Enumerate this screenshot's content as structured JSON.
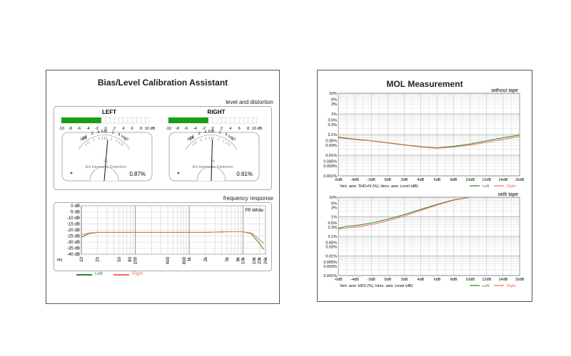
{
  "bias": {
    "title": "Bias/Level Calibration Assistant",
    "level_section": "level and distortion",
    "left": {
      "label": "LEFT",
      "level_db": -1,
      "distortion_value": "0.87%",
      "needle_percent": 1.05
    },
    "right": {
      "label": "RIGHT",
      "level_db": -1,
      "distortion_value": "0.61%",
      "needle_percent": 0.85
    },
    "level_scale": [
      "-10",
      "-8",
      "-6",
      "-4",
      "-2",
      "0",
      "2",
      "4",
      "6",
      "8",
      "10 dB"
    ],
    "dial_ticks": [
      ".06",
      ".08",
      "1",
      ".2",
      ".4",
      ".6",
      ".8",
      "1",
      "2",
      "4",
      "6",
      "8",
      "10"
    ],
    "dial_unit": "%",
    "dial_caption": "3rd Harmonic Distortion",
    "freq_section": "frequency response",
    "freq_mode": "FR White",
    "db_labels": [
      "0 dB",
      "-5 dB",
      "-10 dB",
      "-15 dB",
      "-20 dB",
      "-25 dB",
      "-30 dB",
      "-35 dB",
      "-40 dB"
    ],
    "hz_labels": [
      "Hz",
      "10",
      "20",
      "50",
      "80",
      "100",
      "400",
      "800",
      "1k",
      "2k",
      "5k",
      "8k",
      "10k",
      "16k",
      "20k",
      "26k"
    ],
    "legend_left": "Left",
    "legend_right": "Right",
    "colors": {
      "left": "#1e8a1e",
      "right": "#f26b5b",
      "meter_fill": "#16a016"
    }
  },
  "mol": {
    "title": "MOL Measurement",
    "top": {
      "label": "without tape",
      "caption": "Vert. axis: THD+N (%), Horz. axis: Level (dB)"
    },
    "bottom": {
      "label": "with tape",
      "caption": "Vert. axis: HD3 (%), Horz. axis: Level (dB)"
    },
    "y_labels": [
      "10%",
      "5%",
      "3%",
      "1%",
      "0.5%",
      "0.3%",
      "0.1%",
      "0.05%",
      "0.03%",
      "0.01%",
      "0.005%",
      "0.003%",
      "0.001%"
    ],
    "x_labels": [
      "-6dB",
      "-4dB",
      "-2dB",
      "0dB",
      "2dB",
      "4dB",
      "6dB",
      "8dB",
      "10dB",
      "12dB",
      "14dB",
      "16dB"
    ],
    "legend_left": "Left",
    "legend_right": "Right"
  },
  "chart_data": [
    {
      "type": "line",
      "title": "frequency response",
      "xlabel": "Hz",
      "ylabel": "dB",
      "xscale": "log",
      "xlim": [
        10,
        26000
      ],
      "ylim": [
        -40,
        0
      ],
      "series": [
        {
          "name": "Left",
          "x": [
            10,
            14,
            20,
            30,
            50,
            100,
            200,
            400,
            1000,
            2000,
            5000,
            10000,
            14000,
            16000,
            20000,
            24000
          ],
          "y": [
            -26,
            -23,
            -22,
            -22,
            -22,
            -22,
            -22,
            -22,
            -22,
            -22,
            -21.5,
            -21.5,
            -23,
            -26,
            -31,
            -36
          ]
        },
        {
          "name": "Right",
          "x": [
            10,
            14,
            20,
            30,
            50,
            100,
            200,
            400,
            1000,
            2000,
            5000,
            10000,
            14000,
            16000,
            20000,
            24000
          ],
          "y": [
            -24,
            -22.5,
            -22,
            -22,
            -22,
            -22,
            -22,
            -22,
            -22,
            -22,
            -21.5,
            -21.5,
            -22.5,
            -24,
            -28,
            -31
          ]
        }
      ]
    },
    {
      "type": "line",
      "title": "without tape",
      "xlabel": "Level (dB)",
      "ylabel": "THD+N (%)",
      "yscale": "log",
      "xlim": [
        -6,
        16
      ],
      "ylim": [
        0.001,
        10
      ],
      "series": [
        {
          "name": "Left",
          "x": [
            -6,
            -4,
            -2,
            0,
            2,
            4,
            6,
            8,
            10,
            12,
            14,
            16
          ],
          "y": [
            0.075,
            0.06,
            0.05,
            0.04,
            0.032,
            0.026,
            0.023,
            0.027,
            0.035,
            0.05,
            0.07,
            0.095
          ]
        },
        {
          "name": "Right",
          "x": [
            -6,
            -4,
            -2,
            0,
            2,
            4,
            6,
            8,
            10,
            12,
            14,
            16
          ],
          "y": [
            0.07,
            0.058,
            0.049,
            0.039,
            0.031,
            0.025,
            0.022,
            0.025,
            0.031,
            0.042,
            0.058,
            0.08
          ]
        }
      ]
    },
    {
      "type": "line",
      "title": "with tape",
      "xlabel": "Level (dB)",
      "ylabel": "HD3 (%)",
      "yscale": "log",
      "xlim": [
        -6,
        16
      ],
      "ylim": [
        0.001,
        10
      ],
      "series": [
        {
          "name": "Left",
          "x": [
            -6,
            -5,
            -4,
            -2,
            0,
            2,
            4,
            6,
            8,
            10
          ],
          "y": [
            0.26,
            0.33,
            0.35,
            0.48,
            0.75,
            1.3,
            2.4,
            4.3,
            7.3,
            10
          ]
        },
        {
          "name": "Right",
          "x": [
            -6,
            -5,
            -4,
            -2,
            0,
            2,
            4,
            6,
            8,
            10
          ],
          "y": [
            0.24,
            0.27,
            0.29,
            0.4,
            0.62,
            1.1,
            2.1,
            4,
            7,
            10
          ]
        }
      ]
    }
  ]
}
